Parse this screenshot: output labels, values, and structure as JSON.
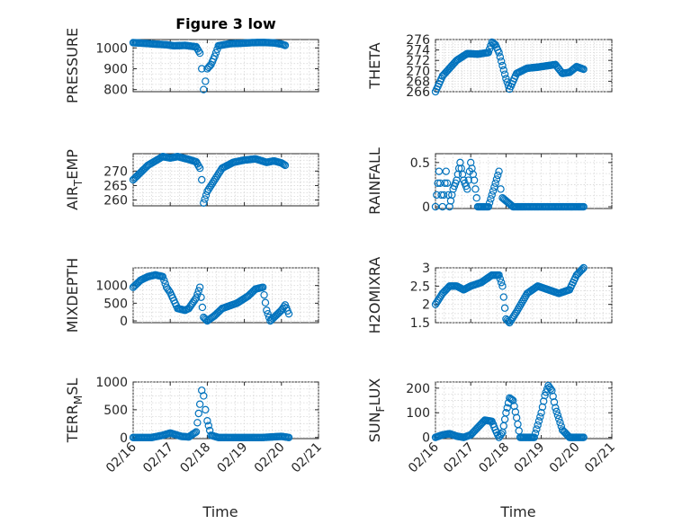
{
  "chart_data": [
    {
      "type": "scatter",
      "title": "Figure 3 low",
      "ylabel": "PRESSURE",
      "ylim": [
        790,
        1040
      ],
      "yticks": [
        "800",
        "900",
        "1000"
      ],
      "ytick_values": [
        800,
        900,
        1000
      ],
      "xlim": [
        "02/16",
        "02/21"
      ],
      "xticks": [],
      "xlabel": "",
      "grid": true,
      "x": [
        "02/16",
        "02/16.3",
        "02/16.6",
        "02/16.9",
        "02/17.1",
        "02/17.4",
        "02/17.7",
        "02/17.8",
        "02/17.85",
        "02/17.9",
        "02/17.95",
        "02/18",
        "02/18.1",
        "02/18.2",
        "02/18.3",
        "02/18.6",
        "02/18.9",
        "02/19.2",
        "02/19.5",
        "02/19.8",
        "02/20",
        "02/20.1"
      ],
      "y": [
        1025,
        1022,
        1018,
        1015,
        1010,
        1012,
        1005,
        975,
        900,
        800,
        840,
        900,
        920,
        960,
        1010,
        1020,
        1022,
        1025,
        1026,
        1024,
        1018,
        1012
      ]
    },
    {
      "type": "scatter",
      "ylabel": "THETA",
      "ylim": [
        266,
        276
      ],
      "yticks": [
        "266",
        "268",
        "270",
        "272",
        "274",
        "276"
      ],
      "ytick_values": [
        266,
        268,
        270,
        272,
        274,
        276
      ],
      "xlim": [
        "02/16",
        "02/21"
      ],
      "xticks": [],
      "xlabel": "",
      "grid": true,
      "x": [
        "02/16",
        "02/16.1",
        "02/16.2",
        "02/16.4",
        "02/16.6",
        "02/16.9",
        "02/17.2",
        "02/17.5",
        "02/17.6",
        "02/17.7",
        "02/17.8",
        "02/17.9",
        "02/18",
        "02/18.1",
        "02/18.3",
        "02/18.6",
        "02/18.9",
        "02/19.2",
        "02/19.4",
        "02/19.6",
        "02/19.8",
        "02/20",
        "02/20.2"
      ],
      "y": [
        266,
        267.5,
        269,
        270.5,
        272,
        273.3,
        273.2,
        273.5,
        275.5,
        275,
        273.5,
        271,
        268.5,
        266.5,
        269.5,
        270.5,
        270.7,
        271,
        271.2,
        269.5,
        269.7,
        270.8,
        270.3
      ]
    },
    {
      "type": "scatter",
      "ylabel": "AIR_TEMP",
      "ylim": [
        258,
        276
      ],
      "yticks": [
        "260",
        "265",
        "270"
      ],
      "ytick_values": [
        260,
        265,
        270
      ],
      "xlim": [
        "02/16",
        "02/21"
      ],
      "xticks": [],
      "xlabel": "",
      "grid": true,
      "x": [
        "02/16",
        "02/16.2",
        "02/16.4",
        "02/16.6",
        "02/16.8",
        "02/17",
        "02/17.2",
        "02/17.5",
        "02/17.7",
        "02/17.8",
        "02/17.85",
        "02/17.9",
        "02/18",
        "02/18.2",
        "02/18.4",
        "02/18.7",
        "02/19",
        "02/19.3",
        "02/19.6",
        "02/19.8",
        "02/20",
        "02/20.1"
      ],
      "y": [
        267,
        269.5,
        272,
        273.5,
        275,
        274.5,
        275,
        274,
        273.2,
        271,
        267,
        259,
        263,
        267,
        271,
        273,
        273.8,
        274.2,
        273,
        273.5,
        272.8,
        272
      ]
    },
    {
      "type": "scatter",
      "ylabel": "RAINFALL",
      "ylim": [
        -0.02,
        0.6
      ],
      "yticks": [
        "0",
        "0.5"
      ],
      "ytick_values": [
        0,
        0.5
      ],
      "xlim": [
        "02/16",
        "02/21"
      ],
      "xticks": [],
      "xlabel": "",
      "grid": true,
      "x": [
        "02/16",
        "02/16.1",
        "02/16.2",
        "02/16.3",
        "02/16.4",
        "02/16.5",
        "02/16.6",
        "02/16.7",
        "02/16.8",
        "02/16.9",
        "02/17",
        "02/17.1",
        "02/17.2",
        "02/17.3",
        "02/17.5",
        "02/17.8",
        "02/17.85",
        "02/17.9",
        "02/18.2",
        "02/18.5",
        "02/19",
        "02/19.5",
        "02/20",
        "02/20.2"
      ],
      "y": [
        0,
        0.4,
        0,
        0.4,
        0,
        0.2,
        0.3,
        0.5,
        0.3,
        0.2,
        0.5,
        0.3,
        0,
        0,
        0,
        0.4,
        0.2,
        0.1,
        0,
        0,
        0,
        0,
        0,
        0
      ]
    },
    {
      "type": "scatter",
      "ylabel": "MIXDEPTH",
      "ylim": [
        -50,
        1500
      ],
      "yticks": [
        "0",
        "500",
        "1000"
      ],
      "ytick_values": [
        0,
        500,
        1000
      ],
      "xlim": [
        "02/16",
        "02/21"
      ],
      "xticks": [],
      "xlabel": "",
      "grid": true,
      "x": [
        "02/16",
        "02/16.2",
        "02/16.4",
        "02/16.6",
        "02/16.8",
        "02/16.9",
        "02/17",
        "02/17.2",
        "02/17.4",
        "02/17.5",
        "02/17.7",
        "02/17.8",
        "02/17.9",
        "02/18",
        "02/18.2",
        "02/18.4",
        "02/18.8",
        "02/19.1",
        "02/19.3",
        "02/19.5",
        "02/19.6",
        "02/19.7",
        "02/20",
        "02/20.1",
        "02/20.2"
      ],
      "y": [
        950,
        1150,
        1250,
        1300,
        1250,
        950,
        800,
        350,
        300,
        350,
        650,
        950,
        100,
        0,
        150,
        350,
        500,
        700,
        900,
        950,
        300,
        0,
        300,
        450,
        200
      ]
    },
    {
      "type": "scatter",
      "ylabel": "H2OMIXRA",
      "ylim": [
        1.5,
        3
      ],
      "yticks": [
        "1.5",
        "2",
        "2.5",
        "3"
      ],
      "ytick_values": [
        1.5,
        2,
        2.5,
        3
      ],
      "xlim": [
        "02/16",
        "02/21"
      ],
      "xticks": [],
      "xlabel": "",
      "grid": true,
      "x": [
        "02/16",
        "02/16.2",
        "02/16.4",
        "02/16.6",
        "02/16.8",
        "02/17",
        "02/17.3",
        "02/17.6",
        "02/17.8",
        "02/17.9",
        "02/18",
        "02/18.1",
        "02/18.3",
        "02/18.6",
        "02/18.9",
        "02/19.2",
        "02/19.5",
        "02/19.8",
        "02/20",
        "02/20.2"
      ],
      "y": [
        2.0,
        2.3,
        2.5,
        2.5,
        2.4,
        2.5,
        2.6,
        2.8,
        2.8,
        2.5,
        1.6,
        1.5,
        1.8,
        2.3,
        2.5,
        2.4,
        2.3,
        2.4,
        2.8,
        3.0
      ]
    },
    {
      "type": "scatter",
      "ylabel": "TERR_MSL",
      "ylim": [
        -20,
        1000
      ],
      "yticks": [
        "0",
        "500",
        "1000"
      ],
      "ytick_values": [
        0,
        500,
        1000
      ],
      "xlim": [
        "02/16",
        "02/21"
      ],
      "xticks": [
        "02/16",
        "02/17",
        "02/18",
        "02/19",
        "02/20",
        "02/21"
      ],
      "xlabel": "Time",
      "grid": true,
      "x": [
        "02/16",
        "02/16.5",
        "02/16.8",
        "02/17",
        "02/17.3",
        "02/17.5",
        "02/17.7",
        "02/17.8",
        "02/17.85",
        "02/17.9",
        "02/17.95",
        "02/18",
        "02/18.1",
        "02/18.3",
        "02/18.6",
        "02/19",
        "02/19.5",
        "02/20",
        "02/20.2"
      ],
      "y": [
        0,
        0,
        40,
        80,
        20,
        10,
        100,
        600,
        850,
        750,
        500,
        300,
        40,
        0,
        0,
        0,
        0,
        20,
        0
      ]
    },
    {
      "type": "scatter",
      "ylabel": "SUN_FLUX",
      "ylim": [
        -5,
        225
      ],
      "yticks": [
        "0",
        "100",
        "200"
      ],
      "ytick_values": [
        0,
        100,
        200
      ],
      "xlim": [
        "02/16",
        "02/21"
      ],
      "xticks": [
        "02/16",
        "02/17",
        "02/18",
        "02/19",
        "02/20",
        "02/21"
      ],
      "xlabel": "Time",
      "grid": true,
      "x": [
        "02/16",
        "02/16.2",
        "02/16.4",
        "02/16.6",
        "02/16.8",
        "02/17",
        "02/17.2",
        "02/17.4",
        "02/17.6",
        "02/17.7",
        "02/17.8",
        "02/17.9",
        "02/18",
        "02/18.1",
        "02/18.2",
        "02/18.3",
        "02/18.4",
        "02/18.6",
        "02/18.8",
        "02/19",
        "02/19.1",
        "02/19.2",
        "02/19.3",
        "02/19.4",
        "02/19.6",
        "02/19.8",
        "02/20",
        "02/20.2"
      ],
      "y": [
        0,
        10,
        15,
        5,
        0,
        10,
        40,
        70,
        65,
        30,
        0,
        20,
        100,
        160,
        150,
        80,
        0,
        0,
        0,
        100,
        170,
        210,
        190,
        120,
        30,
        0,
        0,
        0
      ]
    }
  ]
}
